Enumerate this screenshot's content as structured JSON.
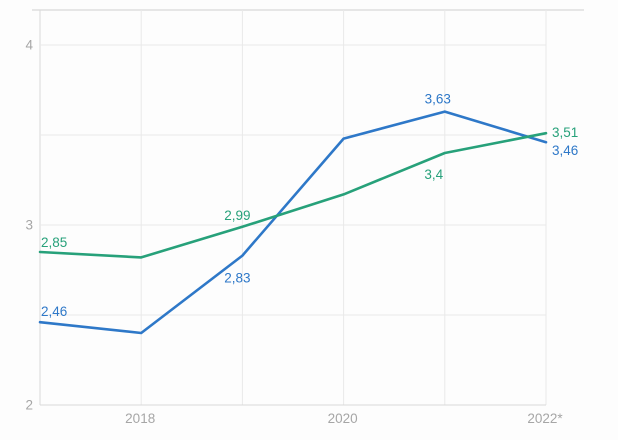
{
  "chart_data": {
    "type": "line",
    "title": "",
    "xlabel": "",
    "ylabel": "",
    "x": [
      2017,
      2018,
      2019,
      2020,
      2021,
      2022
    ],
    "x_tick_labels": [
      {
        "x": 2018,
        "label": "2018"
      },
      {
        "x": 2020,
        "label": "2020"
      },
      {
        "x": 2022,
        "label": "2022*"
      }
    ],
    "y_ticks": [
      {
        "value": 2,
        "label": "2"
      },
      {
        "value": 3,
        "label": "3"
      },
      {
        "value": 4,
        "label": "4"
      }
    ],
    "y_minor_gridlines": [
      2.5,
      3.5
    ],
    "ylim": [
      2,
      4.2
    ],
    "grid": true,
    "legend_position": "none",
    "decimal_separator": ",",
    "series": [
      {
        "name": "blue_series",
        "color": "#2e78c8",
        "values": [
          2.46,
          2.4,
          2.83,
          3.48,
          3.63,
          3.46
        ],
        "point_labels": [
          "2,46",
          null,
          "2,83",
          null,
          "3,63",
          "3,46"
        ]
      },
      {
        "name": "green_series",
        "color": "#27a17a",
        "values": [
          2.85,
          2.82,
          2.99,
          3.17,
          3.4,
          3.51
        ],
        "point_labels": [
          "2,85",
          null,
          "2,99",
          null,
          "3,4",
          "3,51"
        ]
      }
    ],
    "colors": {
      "gridline": "#e9e9e9",
      "axis_line": "#d9d9d9",
      "top_border": "#e6e6e6",
      "tick_text": "#a6a6a6",
      "background": "#fdfdfd"
    }
  }
}
